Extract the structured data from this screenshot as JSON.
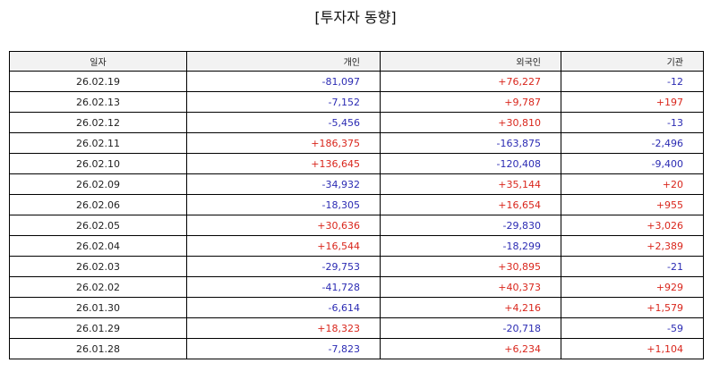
{
  "title": "[투자자 동향]",
  "colors": {
    "positive": "#d9261c",
    "negative": "#2b2bb3"
  },
  "columns": [
    "일자",
    "개인",
    "외국인",
    "기관"
  ],
  "rows": [
    [
      "26.02.19",
      "-81,097",
      "+76,227",
      "-12"
    ],
    [
      "26.02.13",
      "-7,152",
      "+9,787",
      "+197"
    ],
    [
      "26.02.12",
      "-5,456",
      "+30,810",
      "-13"
    ],
    [
      "26.02.11",
      "+186,375",
      "-163,875",
      "-2,496"
    ],
    [
      "26.02.10",
      "+136,645",
      "-120,408",
      "-9,400"
    ],
    [
      "26.02.09",
      "-34,932",
      "+35,144",
      "+20"
    ],
    [
      "26.02.06",
      "-18,305",
      "+16,654",
      "+955"
    ],
    [
      "26.02.05",
      "+30,636",
      "-29,830",
      "+3,026"
    ],
    [
      "26.02.04",
      "+16,544",
      "-18,299",
      "+2,389"
    ],
    [
      "26.02.03",
      "-29,753",
      "+30,895",
      "-21"
    ],
    [
      "26.02.02",
      "-41,728",
      "+40,373",
      "+929"
    ],
    [
      "26.01.30",
      "-6,614",
      "+4,216",
      "+1,579"
    ],
    [
      "26.01.29",
      "+18,323",
      "-20,718",
      "-59"
    ],
    [
      "26.01.28",
      "-7,823",
      "+6,234",
      "+1,104"
    ]
  ]
}
